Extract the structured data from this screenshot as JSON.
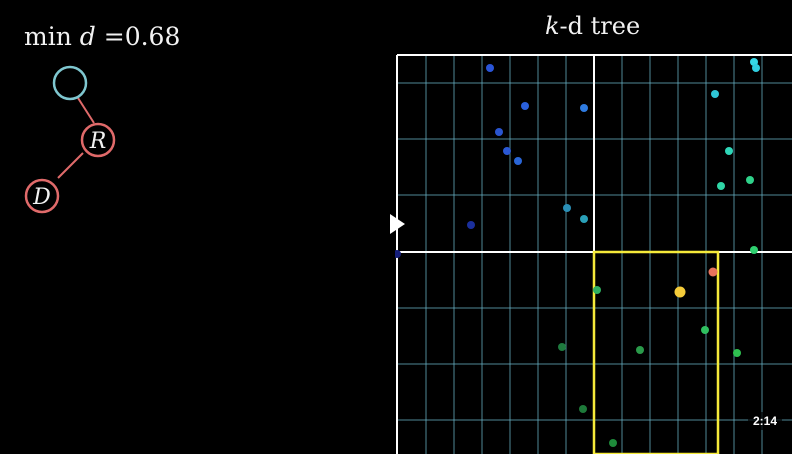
{
  "header": {
    "min_d_label_prefix": "min",
    "min_d_var": "d",
    "min_d_eq": "=",
    "min_d_value": "0.68",
    "kd_title_k": "k",
    "kd_title_rest": "-d tree"
  },
  "tree": {
    "nodes": [
      {
        "label": "",
        "color": "#7fc7d0"
      },
      {
        "label": "R",
        "color": "#e06a6a"
      },
      {
        "label": "D",
        "color": "#e06a6a"
      }
    ],
    "edge_color": "#e06a6a"
  },
  "player": {
    "timestamp": "2:14",
    "play_icon": "play-icon"
  },
  "colors": {
    "grid_line": "#6ab6c9",
    "split_line": "#ffffff",
    "search_box": "#f5ea3a",
    "query_point": "#f5cc3a",
    "nearest_point": "#e8735c"
  }
}
